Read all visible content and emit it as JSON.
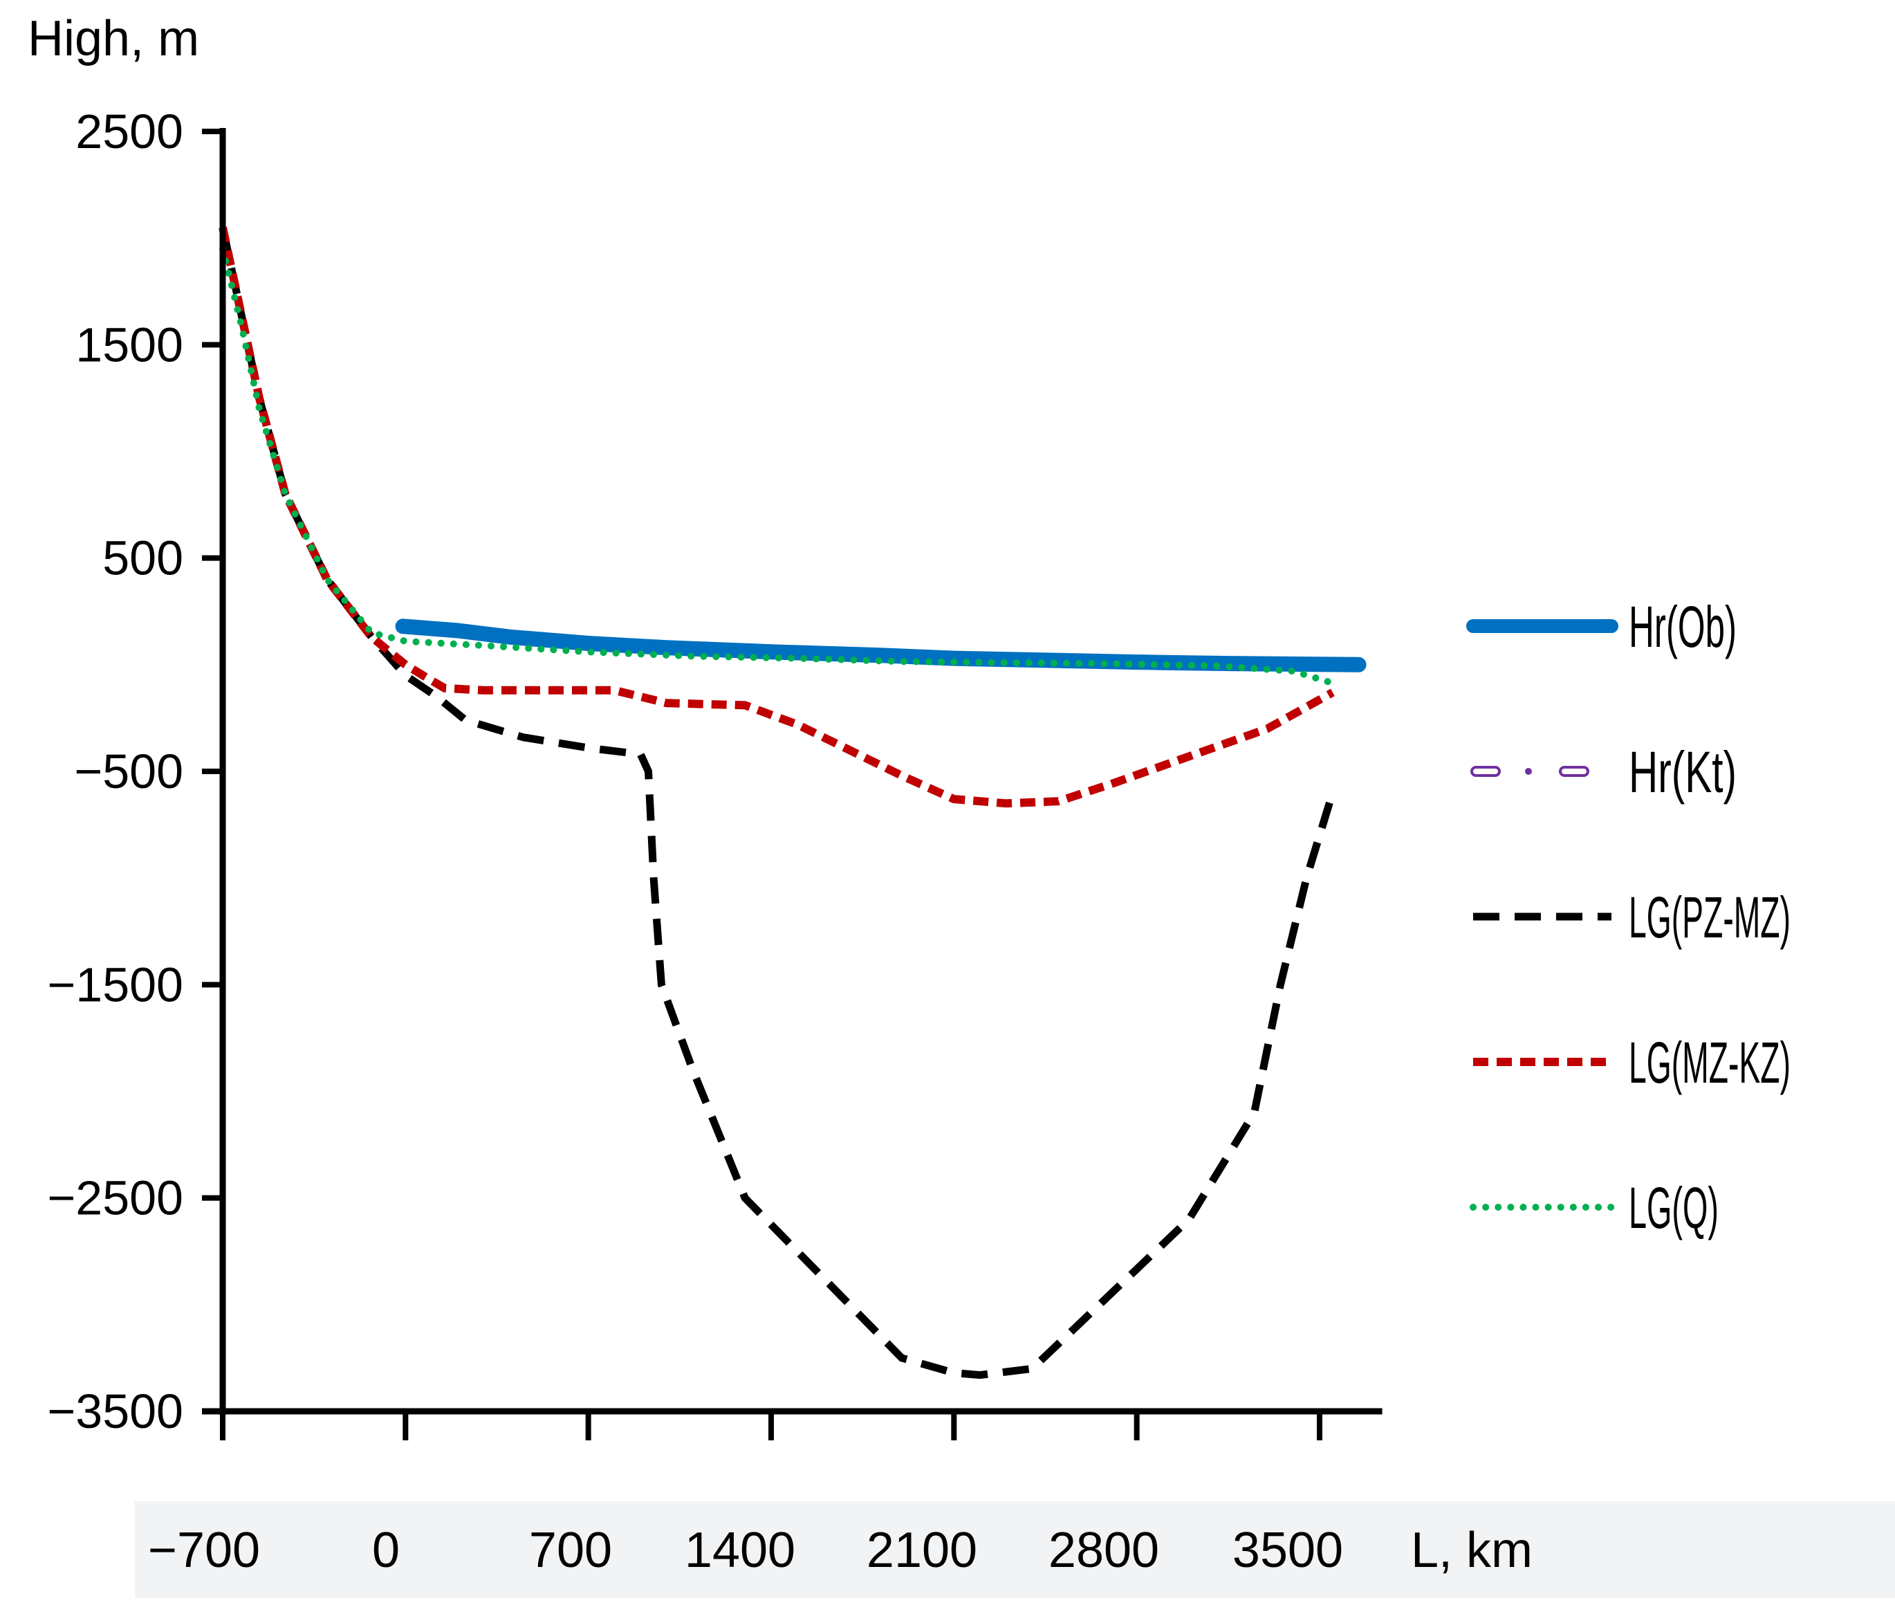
{
  "chart_data": {
    "type": "line",
    "ylabel": "High, m",
    "xlabel": "L, km",
    "xlim": [
      -700,
      3700
    ],
    "ylim": [
      -3500,
      2500
    ],
    "yticks": [
      2500,
      1500,
      500,
      -500,
      -1500,
      -2500,
      -3500
    ],
    "ytick_labels": [
      "2500",
      "1500",
      "500",
      "−500",
      "−1500",
      "−2500",
      "−3500"
    ],
    "xticks": [
      -700,
      0,
      700,
      1400,
      2100,
      2800,
      3500
    ],
    "xtick_labels": [
      "−700",
      "0",
      "700",
      "1400",
      "2100",
      "2800",
      "3500"
    ],
    "legend_position": "right",
    "series": [
      {
        "name": "Hr(Ob)",
        "color": "#0070c0",
        "style": "solid-thick",
        "points": [
          [
            -10,
            180
          ],
          [
            200,
            160
          ],
          [
            400,
            130
          ],
          [
            700,
            100
          ],
          [
            1000,
            80
          ],
          [
            1400,
            60
          ],
          [
            1800,
            45
          ],
          [
            2100,
            30
          ],
          [
            2500,
            20
          ],
          [
            2900,
            10
          ],
          [
            3200,
            5
          ],
          [
            3650,
            0
          ]
        ]
      },
      {
        "name": "Hr(Kt)",
        "color": "#7030a0",
        "style": "dash-dot-hollow",
        "points": []
      },
      {
        "name": "LG(PZ-MZ)",
        "color": "#000000",
        "style": "dashed",
        "points": [
          [
            -700,
            2050
          ],
          [
            -630,
            1650
          ],
          [
            -560,
            1250
          ],
          [
            -460,
            800
          ],
          [
            -300,
            400
          ],
          [
            -130,
            130
          ],
          [
            0,
            -50
          ],
          [
            120,
            -150
          ],
          [
            230,
            -260
          ],
          [
            450,
            -340
          ],
          [
            700,
            -390
          ],
          [
            900,
            -420
          ],
          [
            930,
            -500
          ],
          [
            950,
            -1000
          ],
          [
            980,
            -1500
          ],
          [
            1100,
            -1900
          ],
          [
            1200,
            -2200
          ],
          [
            1300,
            -2500
          ],
          [
            1500,
            -2750
          ],
          [
            1700,
            -3000
          ],
          [
            1900,
            -3250
          ],
          [
            2100,
            -3320
          ],
          [
            2200,
            -3330
          ],
          [
            2400,
            -3300
          ],
          [
            2700,
            -2950
          ],
          [
            3000,
            -2600
          ],
          [
            3150,
            -2300
          ],
          [
            3250,
            -2100
          ],
          [
            3350,
            -1500
          ],
          [
            3450,
            -1000
          ],
          [
            3550,
            -600
          ]
        ]
      },
      {
        "name": "LG(MZ-KZ)",
        "color": "#c00000",
        "style": "dotted-square",
        "points": [
          [
            -700,
            2050
          ],
          [
            -630,
            1650
          ],
          [
            -560,
            1250
          ],
          [
            -460,
            800
          ],
          [
            -300,
            400
          ],
          [
            -130,
            130
          ],
          [
            0,
            0
          ],
          [
            80,
            -60
          ],
          [
            150,
            -110
          ],
          [
            300,
            -120
          ],
          [
            500,
            -120
          ],
          [
            800,
            -120
          ],
          [
            1000,
            -180
          ],
          [
            1300,
            -190
          ],
          [
            1500,
            -280
          ],
          [
            1700,
            -400
          ],
          [
            1900,
            -520
          ],
          [
            2100,
            -630
          ],
          [
            2300,
            -650
          ],
          [
            2500,
            -640
          ],
          [
            2700,
            -560
          ],
          [
            3000,
            -430
          ],
          [
            3300,
            -300
          ],
          [
            3550,
            -130
          ]
        ]
      },
      {
        "name": "LG(Q)",
        "color": "#00b050",
        "style": "dotted-round",
        "points": [
          [
            -700,
            1950
          ],
          [
            -630,
            1600
          ],
          [
            -560,
            1200
          ],
          [
            -460,
            800
          ],
          [
            -300,
            400
          ],
          [
            -130,
            150
          ],
          [
            0,
            110
          ],
          [
            300,
            90
          ],
          [
            700,
            60
          ],
          [
            1100,
            40
          ],
          [
            1500,
            30
          ],
          [
            1900,
            15
          ],
          [
            2300,
            10
          ],
          [
            2700,
            5
          ],
          [
            3100,
            -5
          ],
          [
            3400,
            -30
          ],
          [
            3560,
            -90
          ]
        ]
      }
    ]
  }
}
